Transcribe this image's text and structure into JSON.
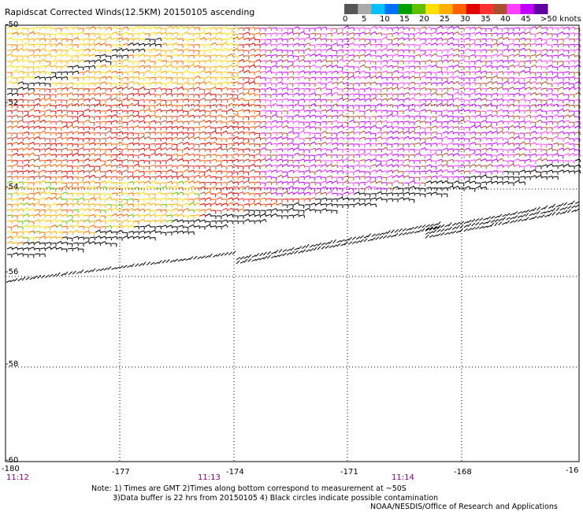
{
  "title": "Rapidscat Corrected Winds(12.5KM) 20150105 ascending",
  "legend": {
    "colors": [
      "#555555",
      "#aaaaaa",
      "#00c0ff",
      "#0070ff",
      "#00a000",
      "#60c000",
      "#ffe000",
      "#ffb000",
      "#ff6000",
      "#e00000",
      "#ff3030",
      "#aa5030",
      "#ff40ff",
      "#c000ff",
      "#6000a0"
    ],
    "labels": [
      {
        "text": "0"
      },
      {
        "text": "5"
      },
      {
        "text": "10"
      },
      {
        "text": "15"
      },
      {
        "text": "20"
      },
      {
        "text": "25"
      },
      {
        "text": "30"
      },
      {
        "text": "35"
      },
      {
        "text": "40"
      },
      {
        "text": "45"
      },
      {
        "text": ">50 knots"
      }
    ]
  },
  "lat_labels": [
    "-50",
    "-52",
    "-54",
    "-56",
    "-58",
    "-60"
  ],
  "lon_labels": [
    "-180",
    "-177",
    "-174",
    "-171",
    "-168",
    "-16"
  ],
  "time_labels": [
    "11:12",
    "11:13",
    "11:14"
  ],
  "notes": {
    "line1": "Note: 1) Times are GMT 2)Times along bottom correspond to measurement at ~50S",
    "line2": "3)Data buffer is 22 hrs from 20150105 4) Black circles indicate possible contamination",
    "line3": "NOAA/NESDIS/Office of Research and Applications"
  }
}
